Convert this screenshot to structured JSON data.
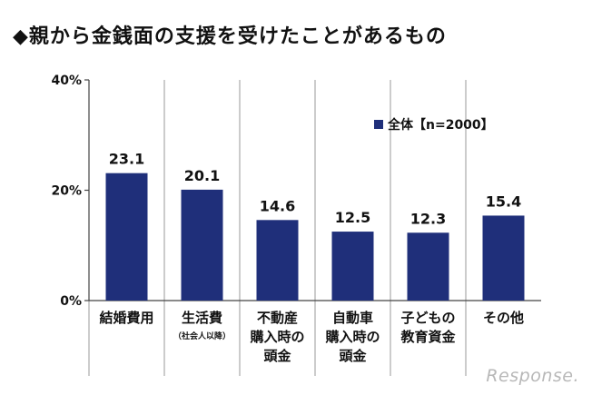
{
  "title": "◆親から金銭面の支援を受けたことがあるもの",
  "watermark": "Response.",
  "colors": {
    "bar": "#1f2f7a",
    "axis": "#444444",
    "divider": "#9a9a9a"
  },
  "chart_data": {
    "type": "bar",
    "title": "◆親から金銭面の支援を受けたことがあるもの",
    "categories": [
      {
        "lines": [
          "結婚費用"
        ],
        "sub": ""
      },
      {
        "lines": [
          "生活費"
        ],
        "sub": "（社会人以降）"
      },
      {
        "lines": [
          "不動産",
          "購入時の",
          "頭金"
        ],
        "sub": ""
      },
      {
        "lines": [
          "自動車",
          "購入時の",
          "頭金"
        ],
        "sub": ""
      },
      {
        "lines": [
          "子どもの",
          "教育資金"
        ],
        "sub": ""
      },
      {
        "lines": [
          "その他"
        ],
        "sub": ""
      }
    ],
    "series": [
      {
        "name": "全体【n=2000】",
        "values": [
          23.1,
          20.1,
          14.6,
          12.5,
          12.3,
          15.4
        ]
      }
    ],
    "value_labels": [
      "23.1",
      "20.1",
      "14.6",
      "12.5",
      "12.3",
      "15.4"
    ],
    "y_ticks": [
      {
        "value": 0,
        "label": "0%"
      },
      {
        "value": 20,
        "label": "20%"
      },
      {
        "value": 40,
        "label": "40%"
      }
    ],
    "ylim": [
      0,
      40
    ],
    "legend_position": "top-right",
    "xlabel": "",
    "ylabel": ""
  }
}
